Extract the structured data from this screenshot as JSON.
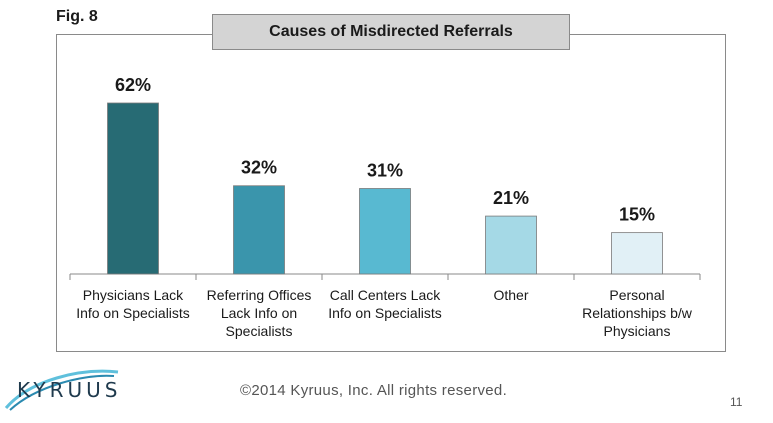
{
  "fig_label": "Fig. 8",
  "footer": "©2014 Kyruus, Inc. All rights reserved.",
  "page_number": "11",
  "logo_text": "KYRUUS",
  "colors": {
    "bars": [
      "#276b74",
      "#3a95ac",
      "#58b9d1",
      "#a5d9e6",
      "#e1f0f6"
    ],
    "title_bg": "#d4d4d4",
    "axis": "#8a8a8a"
  },
  "chart_data": {
    "type": "bar",
    "title": "Causes of Misdirected Referrals",
    "categories": [
      [
        "Physicians Lack",
        "Info on Specialists"
      ],
      [
        "Referring Offices",
        "Lack Info on",
        "Specialists"
      ],
      [
        "Call Centers Lack",
        "Info on Specialists"
      ],
      [
        "Other"
      ],
      [
        "Personal",
        "Relationships b/w",
        "Physicians"
      ]
    ],
    "values": [
      62,
      32,
      31,
      21,
      15
    ],
    "data_labels": [
      "62%",
      "32%",
      "31%",
      "21%",
      "15%"
    ],
    "unit": "%",
    "ylim": [
      0,
      70
    ],
    "grid": false,
    "legend": "none"
  }
}
